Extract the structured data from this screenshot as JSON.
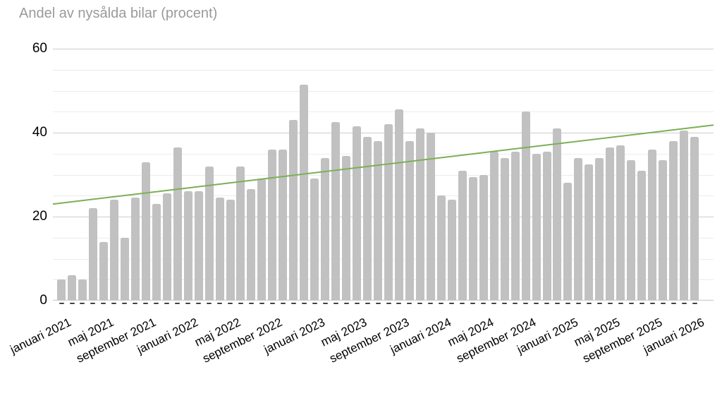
{
  "chart_data": {
    "type": "bar",
    "title": "Andel av nysålda bilar (procent)",
    "xlabel": "",
    "ylabel": "",
    "ylim": [
      0,
      60
    ],
    "y_tick_labels": [
      "0",
      "20",
      "40",
      "60"
    ],
    "y_minor_gridline_step": 5,
    "grid": "on",
    "legend": "none",
    "n_bars": 61,
    "x_range_months": [
      "januari 2021",
      "januari 2026"
    ],
    "x_tick_labels": [
      "januari 2021",
      "maj 2021",
      "september 2021",
      "januari 2022",
      "maj 2022",
      "september 2022",
      "januari 2023",
      "maj 2023",
      "september 2023",
      "januari 2024",
      "maj 2024",
      "september 2024",
      "januari 2025",
      "maj 2025",
      "september 2025",
      "januari 2026"
    ],
    "x_tick_every_n_bars": 4,
    "bar_values": [
      5,
      6,
      5,
      22,
      14,
      24,
      15,
      24.5,
      33,
      23,
      25.5,
      36.5,
      26,
      26,
      32,
      24.5,
      24,
      32,
      26.5,
      29,
      36,
      36,
      43,
      51.5,
      29,
      34,
      42.5,
      34.5,
      41.5,
      39,
      38,
      42,
      45.5,
      38,
      41,
      40,
      25,
      24,
      31,
      29.5,
      30,
      35.5,
      34,
      35.5,
      45,
      35,
      35.5,
      41,
      28,
      34,
      32.5,
      34,
      36.5,
      37,
      33.5,
      31,
      36,
      33.5,
      38,
      40.5,
      39
    ],
    "trendline": {
      "type": "linear",
      "start_value": 23,
      "end_value": 41.8
    },
    "colors": {
      "bar": "#c1c1c1",
      "trendline": "#7daf56",
      "title_text": "#9a9a9a",
      "axis_text": "#000000",
      "grid_major": "#cccccc",
      "grid_minor": "#ececec",
      "axis_tick_mark": "#424242",
      "background": "#ffffff"
    }
  }
}
